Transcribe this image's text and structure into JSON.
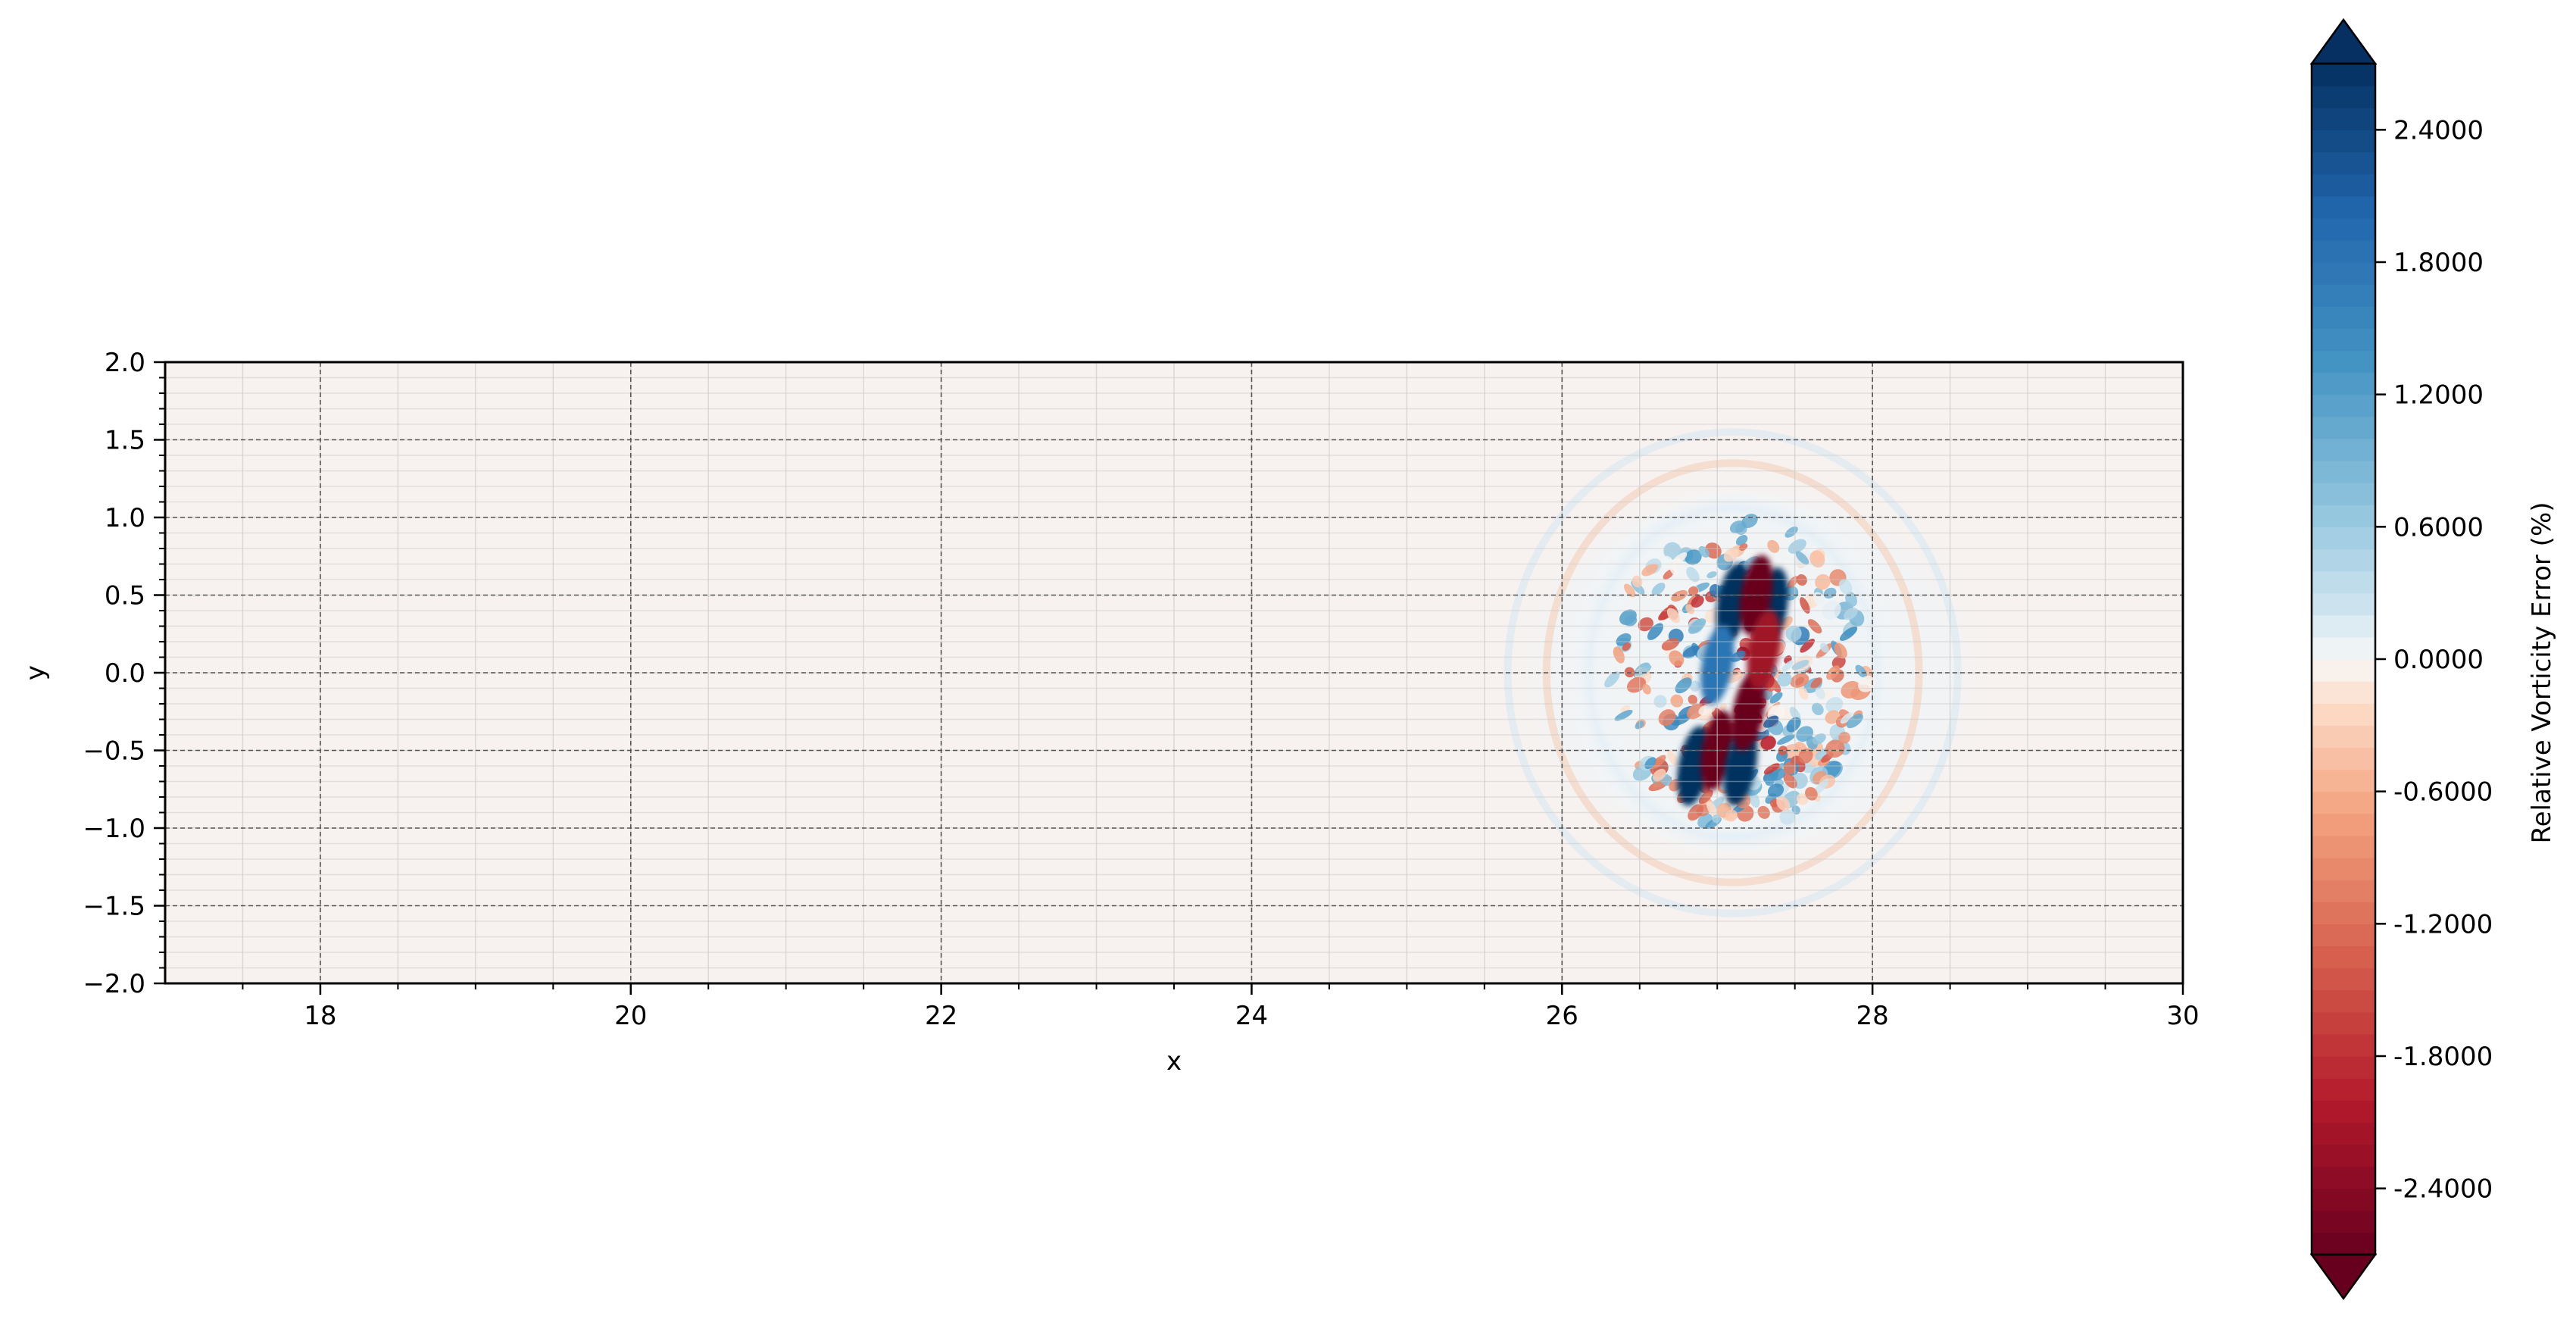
{
  "chart_data": {
    "type": "heatmap",
    "title": "",
    "xlabel": "x",
    "ylabel": "y",
    "xlim": [
      17,
      30
    ],
    "ylim": [
      -2.0,
      2.0
    ],
    "x_ticks": [
      18,
      20,
      22,
      24,
      26,
      28,
      30
    ],
    "x_tick_labels": [
      "18",
      "20",
      "22",
      "24",
      "26",
      "28",
      "30"
    ],
    "y_ticks": [
      2.0,
      1.5,
      1.0,
      0.5,
      0.0,
      -0.5,
      -1.0,
      -1.5,
      -2.0
    ],
    "y_tick_labels": [
      "2.0",
      "1.5",
      "1.0",
      "0.5",
      "0.0",
      "−0.5",
      "−1.0",
      "−1.5",
      "−2.0"
    ],
    "grid": true,
    "colorbar": {
      "label": "Relative Vorticity Error (%)",
      "range": [
        -2.7,
        2.7
      ],
      "extend": "both",
      "colormap": "RdBu",
      "ticks": [
        2.4,
        1.8,
        1.2,
        0.6,
        0.0,
        -0.6,
        -1.2,
        -1.8,
        -2.4
      ],
      "tick_labels": [
        "2.4000",
        "1.8000",
        "1.2000",
        "0.6000",
        "0.0000",
        "-0.6000",
        "-1.2000",
        "-1.8000",
        "-2.4000"
      ]
    },
    "background_value": -0.05,
    "features": [
      {
        "kind": "ring",
        "cx": 27.1,
        "cy": 0.0,
        "rx": 1.05,
        "ry": 1.2,
        "value": 0.4
      },
      {
        "kind": "ring",
        "cx": 27.2,
        "cy": 0.0,
        "rx": 1.7,
        "ry": 1.4,
        "value": 0.15
      },
      {
        "kind": "blob",
        "cx": 27.1,
        "cy": 0.45,
        "value": 2.7
      },
      {
        "kind": "blob",
        "cx": 27.35,
        "cy": 0.42,
        "value": 2.7
      },
      {
        "kind": "blob",
        "cx": 27.25,
        "cy": 0.5,
        "value": -2.7
      },
      {
        "kind": "blob",
        "cx": 26.85,
        "cy": -0.6,
        "value": 2.7
      },
      {
        "kind": "blob",
        "cx": 27.0,
        "cy": -0.5,
        "value": -2.7
      },
      {
        "kind": "blob",
        "cx": 27.15,
        "cy": -0.6,
        "value": 2.7
      },
      {
        "kind": "blob",
        "cx": 27.2,
        "cy": -0.25,
        "value": -2.7
      },
      {
        "kind": "blob",
        "cx": 27.3,
        "cy": 0.15,
        "value": -2.2
      },
      {
        "kind": "blob",
        "cx": 27.0,
        "cy": 0.05,
        "value": 1.8
      }
    ]
  }
}
